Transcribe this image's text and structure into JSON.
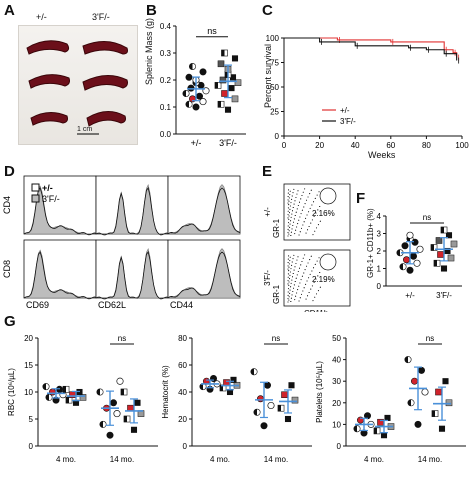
{
  "panel_letters": [
    "A",
    "B",
    "C",
    "D",
    "E",
    "F",
    "G"
  ],
  "panelA": {
    "labels": [
      "+/-",
      "3'F/-"
    ],
    "scale_bar": "1 cm"
  },
  "panelB": {
    "ylabel": "Splenic Mass (g)",
    "yticks": [
      "0.0",
      "0.1",
      "0.2",
      "0.3",
      "0.4"
    ],
    "groups": [
      "+/-",
      "3'F/-"
    ],
    "sig": "ns"
  },
  "panelC": {
    "ylabel": "Percent survival",
    "xlabel": "Weeks",
    "yticks": [
      "0",
      "25",
      "50",
      "75",
      "100"
    ],
    "xticks": [
      "0",
      "20",
      "40",
      "60",
      "80",
      "100"
    ],
    "legend": [
      "+/-",
      "3'F/-"
    ]
  },
  "panelD": {
    "legend": [
      "+/-",
      "3'F/-"
    ],
    "row_labels": [
      "CD4",
      "CD8"
    ],
    "col_labels": [
      "CD69",
      "CD62L",
      "CD44"
    ]
  },
  "panelE": {
    "row_labels": [
      "+/-",
      "3'F/-"
    ],
    "y_axis": "GR-1",
    "x_axis": "CD11b",
    "percent_top": "2.16%",
    "percent_bottom": "2.19%"
  },
  "panelF": {
    "ylabel": "GR-1+ CD11b+ (%)",
    "yticks": [
      "0",
      "1",
      "2",
      "3",
      "4"
    ],
    "groups": [
      "+/-",
      "3'F/-"
    ],
    "sig": "ns"
  },
  "panelG": {
    "groups": [
      "4 mo.",
      "14 mo."
    ],
    "sig": "ns",
    "rbc": {
      "ylabel": "RBC (10⁶/µL)",
      "yticks": [
        "0",
        "5",
        "10",
        "15",
        "20"
      ]
    },
    "hct": {
      "ylabel": "Hematocrit (%)",
      "yticks": [
        "0",
        "20",
        "40",
        "60",
        "80"
      ]
    },
    "plt": {
      "ylabel": "Platelets (10⁵/µL)",
      "yticks": [
        "0",
        "10",
        "20",
        "30",
        "40",
        "50"
      ]
    }
  },
  "colors": {
    "accent_blue": "#4a90d9",
    "red": "#d0232b",
    "km_red": "#e03030"
  },
  "chart_data": [
    {
      "id": "B",
      "type": "scatter",
      "ylabel": "Splenic Mass (g)",
      "ylim": [
        0,
        0.4
      ],
      "categories": [
        "+/-",
        "3'F/-"
      ],
      "series": [
        {
          "name": "+/-",
          "values": [
            0.1,
            0.11,
            0.12,
            0.13,
            0.14,
            0.15,
            0.16,
            0.17,
            0.18,
            0.19,
            0.2,
            0.21,
            0.23,
            0.25
          ]
        },
        {
          "name": "3'F/-",
          "values": [
            0.09,
            0.11,
            0.13,
            0.15,
            0.17,
            0.18,
            0.19,
            0.2,
            0.21,
            0.22,
            0.24,
            0.26,
            0.28,
            0.3
          ]
        }
      ],
      "mean": [
        0.17,
        0.19
      ]
    },
    {
      "id": "C",
      "type": "line",
      "ylabel": "Percent survival",
      "xlabel": "Weeks",
      "xlim": [
        0,
        100
      ],
      "ylim": [
        0,
        100
      ],
      "series": [
        {
          "name": "+/-",
          "x": [
            0,
            30,
            60,
            90,
            95,
            97
          ],
          "y": [
            100,
            98,
            96,
            88,
            85,
            80
          ]
        },
        {
          "name": "3'F/-",
          "x": [
            0,
            20,
            40,
            70,
            80,
            90,
            97
          ],
          "y": [
            100,
            96,
            92,
            90,
            88,
            84,
            77
          ]
        }
      ]
    },
    {
      "id": "F",
      "type": "scatter",
      "ylabel": "GR-1+ CD11b+ (%)",
      "ylim": [
        0,
        4
      ],
      "categories": [
        "+/-",
        "3'F/-"
      ],
      "series": [
        {
          "name": "+/-",
          "values": [
            0.9,
            1.1,
            1.3,
            1.5,
            1.7,
            1.9,
            2.1,
            2.3,
            2.5,
            2.7,
            2.9
          ]
        },
        {
          "name": "3'F/-",
          "values": [
            1.0,
            1.3,
            1.6,
            1.8,
            2.0,
            2.2,
            2.4,
            2.6,
            2.9,
            3.2
          ]
        }
      ],
      "mean": [
        1.9,
        2.1
      ]
    },
    {
      "id": "G-RBC",
      "type": "scatter",
      "ylabel": "RBC (10⁶/µL)",
      "ylim": [
        0,
        20
      ],
      "categories": [
        "4 mo.",
        "14 mo."
      ],
      "series": [
        {
          "name": "+/- 4 mo.",
          "values": [
            8.5,
            9,
            9.5,
            10,
            10.5,
            11
          ]
        },
        {
          "name": "3'F/- 4 mo.",
          "values": [
            8,
            8.5,
            9,
            9.5,
            10,
            10.5
          ]
        },
        {
          "name": "+/- 14 mo.",
          "values": [
            2,
            4,
            6,
            7,
            8,
            10,
            12
          ]
        },
        {
          "name": "3'F/- 14 mo.",
          "values": [
            3,
            5,
            6,
            7,
            8,
            10
          ]
        }
      ]
    },
    {
      "id": "G-HCT",
      "type": "scatter",
      "ylabel": "Hematocrit (%)",
      "ylim": [
        0,
        80
      ],
      "categories": [
        "4 mo.",
        "14 mo."
      ],
      "series": [
        {
          "name": "+/- 4 mo.",
          "values": [
            42,
            44,
            46,
            48,
            50
          ]
        },
        {
          "name": "3'F/- 4 mo.",
          "values": [
            40,
            43,
            45,
            47,
            49
          ]
        },
        {
          "name": "+/- 14 mo.",
          "values": [
            15,
            25,
            30,
            35,
            45,
            55
          ]
        },
        {
          "name": "3'F/- 14 mo.",
          "values": [
            20,
            28,
            34,
            38,
            45
          ]
        }
      ]
    },
    {
      "id": "G-PLT",
      "type": "scatter",
      "ylabel": "Platelets (10⁵/µL)",
      "ylim": [
        0,
        50
      ],
      "categories": [
        "4 mo.",
        "14 mo."
      ],
      "series": [
        {
          "name": "+/- 4 mo.",
          "values": [
            6,
            8,
            10,
            12,
            14
          ]
        },
        {
          "name": "3'F/- 4 mo.",
          "values": [
            5,
            7,
            9,
            11,
            13
          ]
        },
        {
          "name": "+/- 14 mo.",
          "values": [
            10,
            20,
            25,
            30,
            35,
            40
          ]
        },
        {
          "name": "3'F/- 14 mo.",
          "values": [
            8,
            15,
            20,
            25,
            30
          ]
        }
      ]
    }
  ]
}
